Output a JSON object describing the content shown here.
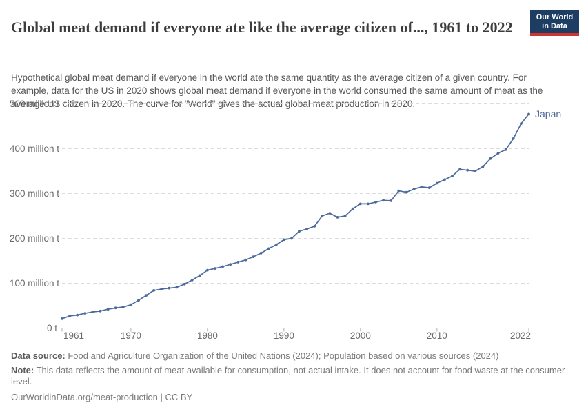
{
  "header": {
    "title": "Global meat demand if everyone ate like the average citizen of..., 1961 to 2022",
    "subtitle": "Hypothetical global meat demand if everyone in the world ate the same quantity as the average citizen of a given country. For example, data for the US in 2020 shows global meat demand if everyone in the world consumed the same amount of meat as the average US citizen in 2020. The curve for \"World\" gives the actual global meat production in 2020.",
    "logo": {
      "line1": "Our World",
      "line2": "in Data",
      "bg_color": "#1d3d63",
      "accent_color": "#cf342e"
    }
  },
  "chart_data": {
    "type": "line",
    "title": "Global meat demand if everyone ate like the average citizen of..., 1961 to 2022",
    "unit": "million t",
    "xlabel": "",
    "ylabel": "",
    "xlim": [
      1961,
      2022
    ],
    "ylim": [
      0,
      500
    ],
    "grid": "horizontal-dashed",
    "legend": "end-of-line-label",
    "x": [
      1961,
      1962,
      1963,
      1964,
      1965,
      1966,
      1967,
      1968,
      1969,
      1970,
      1971,
      1972,
      1973,
      1974,
      1975,
      1976,
      1977,
      1978,
      1979,
      1980,
      1981,
      1982,
      1983,
      1984,
      1985,
      1986,
      1987,
      1988,
      1989,
      1990,
      1991,
      1992,
      1993,
      1994,
      1995,
      1996,
      1997,
      1998,
      1999,
      2000,
      2001,
      2002,
      2003,
      2004,
      2005,
      2006,
      2007,
      2008,
      2009,
      2010,
      2011,
      2012,
      2013,
      2014,
      2015,
      2016,
      2017,
      2018,
      2019,
      2020,
      2021,
      2022
    ],
    "series": [
      {
        "name": "Japan",
        "color": "#4c6a9c",
        "values": [
          21,
          27,
          29,
          33,
          36,
          38,
          42,
          45,
          47,
          52,
          62,
          73,
          84,
          87,
          89,
          91,
          98,
          107,
          117,
          129,
          133,
          137,
          142,
          147,
          152,
          159,
          167,
          177,
          186,
          197,
          200,
          216,
          221,
          227,
          250,
          256,
          247,
          250,
          266,
          277,
          277,
          281,
          285,
          284,
          306,
          303,
          310,
          315,
          313,
          323,
          331,
          339,
          354,
          352,
          350,
          360,
          378,
          390,
          398,
          423,
          456,
          477
        ]
      }
    ],
    "x_ticks": [
      1961,
      1970,
      1980,
      1990,
      2000,
      2010,
      2022
    ],
    "y_ticks": [
      {
        "value": 0,
        "label": "0 t"
      },
      {
        "value": 100,
        "label": "100 million t"
      },
      {
        "value": 200,
        "label": "200 million t"
      },
      {
        "value": 300,
        "label": "300 million t"
      },
      {
        "value": 400,
        "label": "400 million t"
      },
      {
        "value": 500,
        "label": "500 million t"
      }
    ]
  },
  "footer": {
    "data_source_label": "Data source:",
    "data_source_text": " Food and Agriculture Organization of the United Nations (2024); Population based on various sources (2024)",
    "note_label": "Note:",
    "note_text": " This data reflects the amount of meat available for consumption, not actual intake. It does not account for food waste at the consumer level.",
    "link_text": "OurWorldinData.org/meat-production | CC BY"
  },
  "colors": {
    "line_blue": "#4c6a9c",
    "gridline": "#dcdcdc",
    "axis": "#b3b3b3",
    "tick_label": "#6b6b6b",
    "title_text": "#3d3d3d",
    "subtitle_text": "#575757",
    "footer_text": "#7a7a7a"
  }
}
